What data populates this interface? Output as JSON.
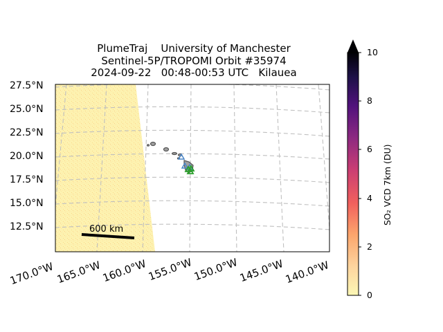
{
  "title": {
    "line1": "PlumeTraj    University of Manchester",
    "line2": "Sentinel-5P/TROPOMI Orbit #35974",
    "line3": "2024-09-22   00:48-00:53 UTC   Kilauea"
  },
  "map": {
    "lat_labels": [
      "27.5°N",
      "25.0°N",
      "22.5°N",
      "20.0°N",
      "17.5°N",
      "15.0°N",
      "12.5°N"
    ],
    "lon_labels": [
      "170.0°W",
      "165.0°W",
      "160.0°W",
      "155.0°W",
      "150.0°W",
      "145.0°W",
      "140.0°W"
    ],
    "scale_bar_label": "600 km",
    "grid": true,
    "marker_colors": {
      "blue_triangles": "#4a86c8",
      "green_triangles": "#2ca02c"
    },
    "swath_color": "#fdf2b0",
    "island_fill": "#a0a0a0"
  },
  "colorbar": {
    "ticks": [
      "0",
      "2",
      "4",
      "6",
      "8",
      "10"
    ],
    "label": "SO₂ VCD 7km (DU)",
    "colormap": "magma_r",
    "range": [
      0,
      10
    ],
    "extend": "max"
  }
}
